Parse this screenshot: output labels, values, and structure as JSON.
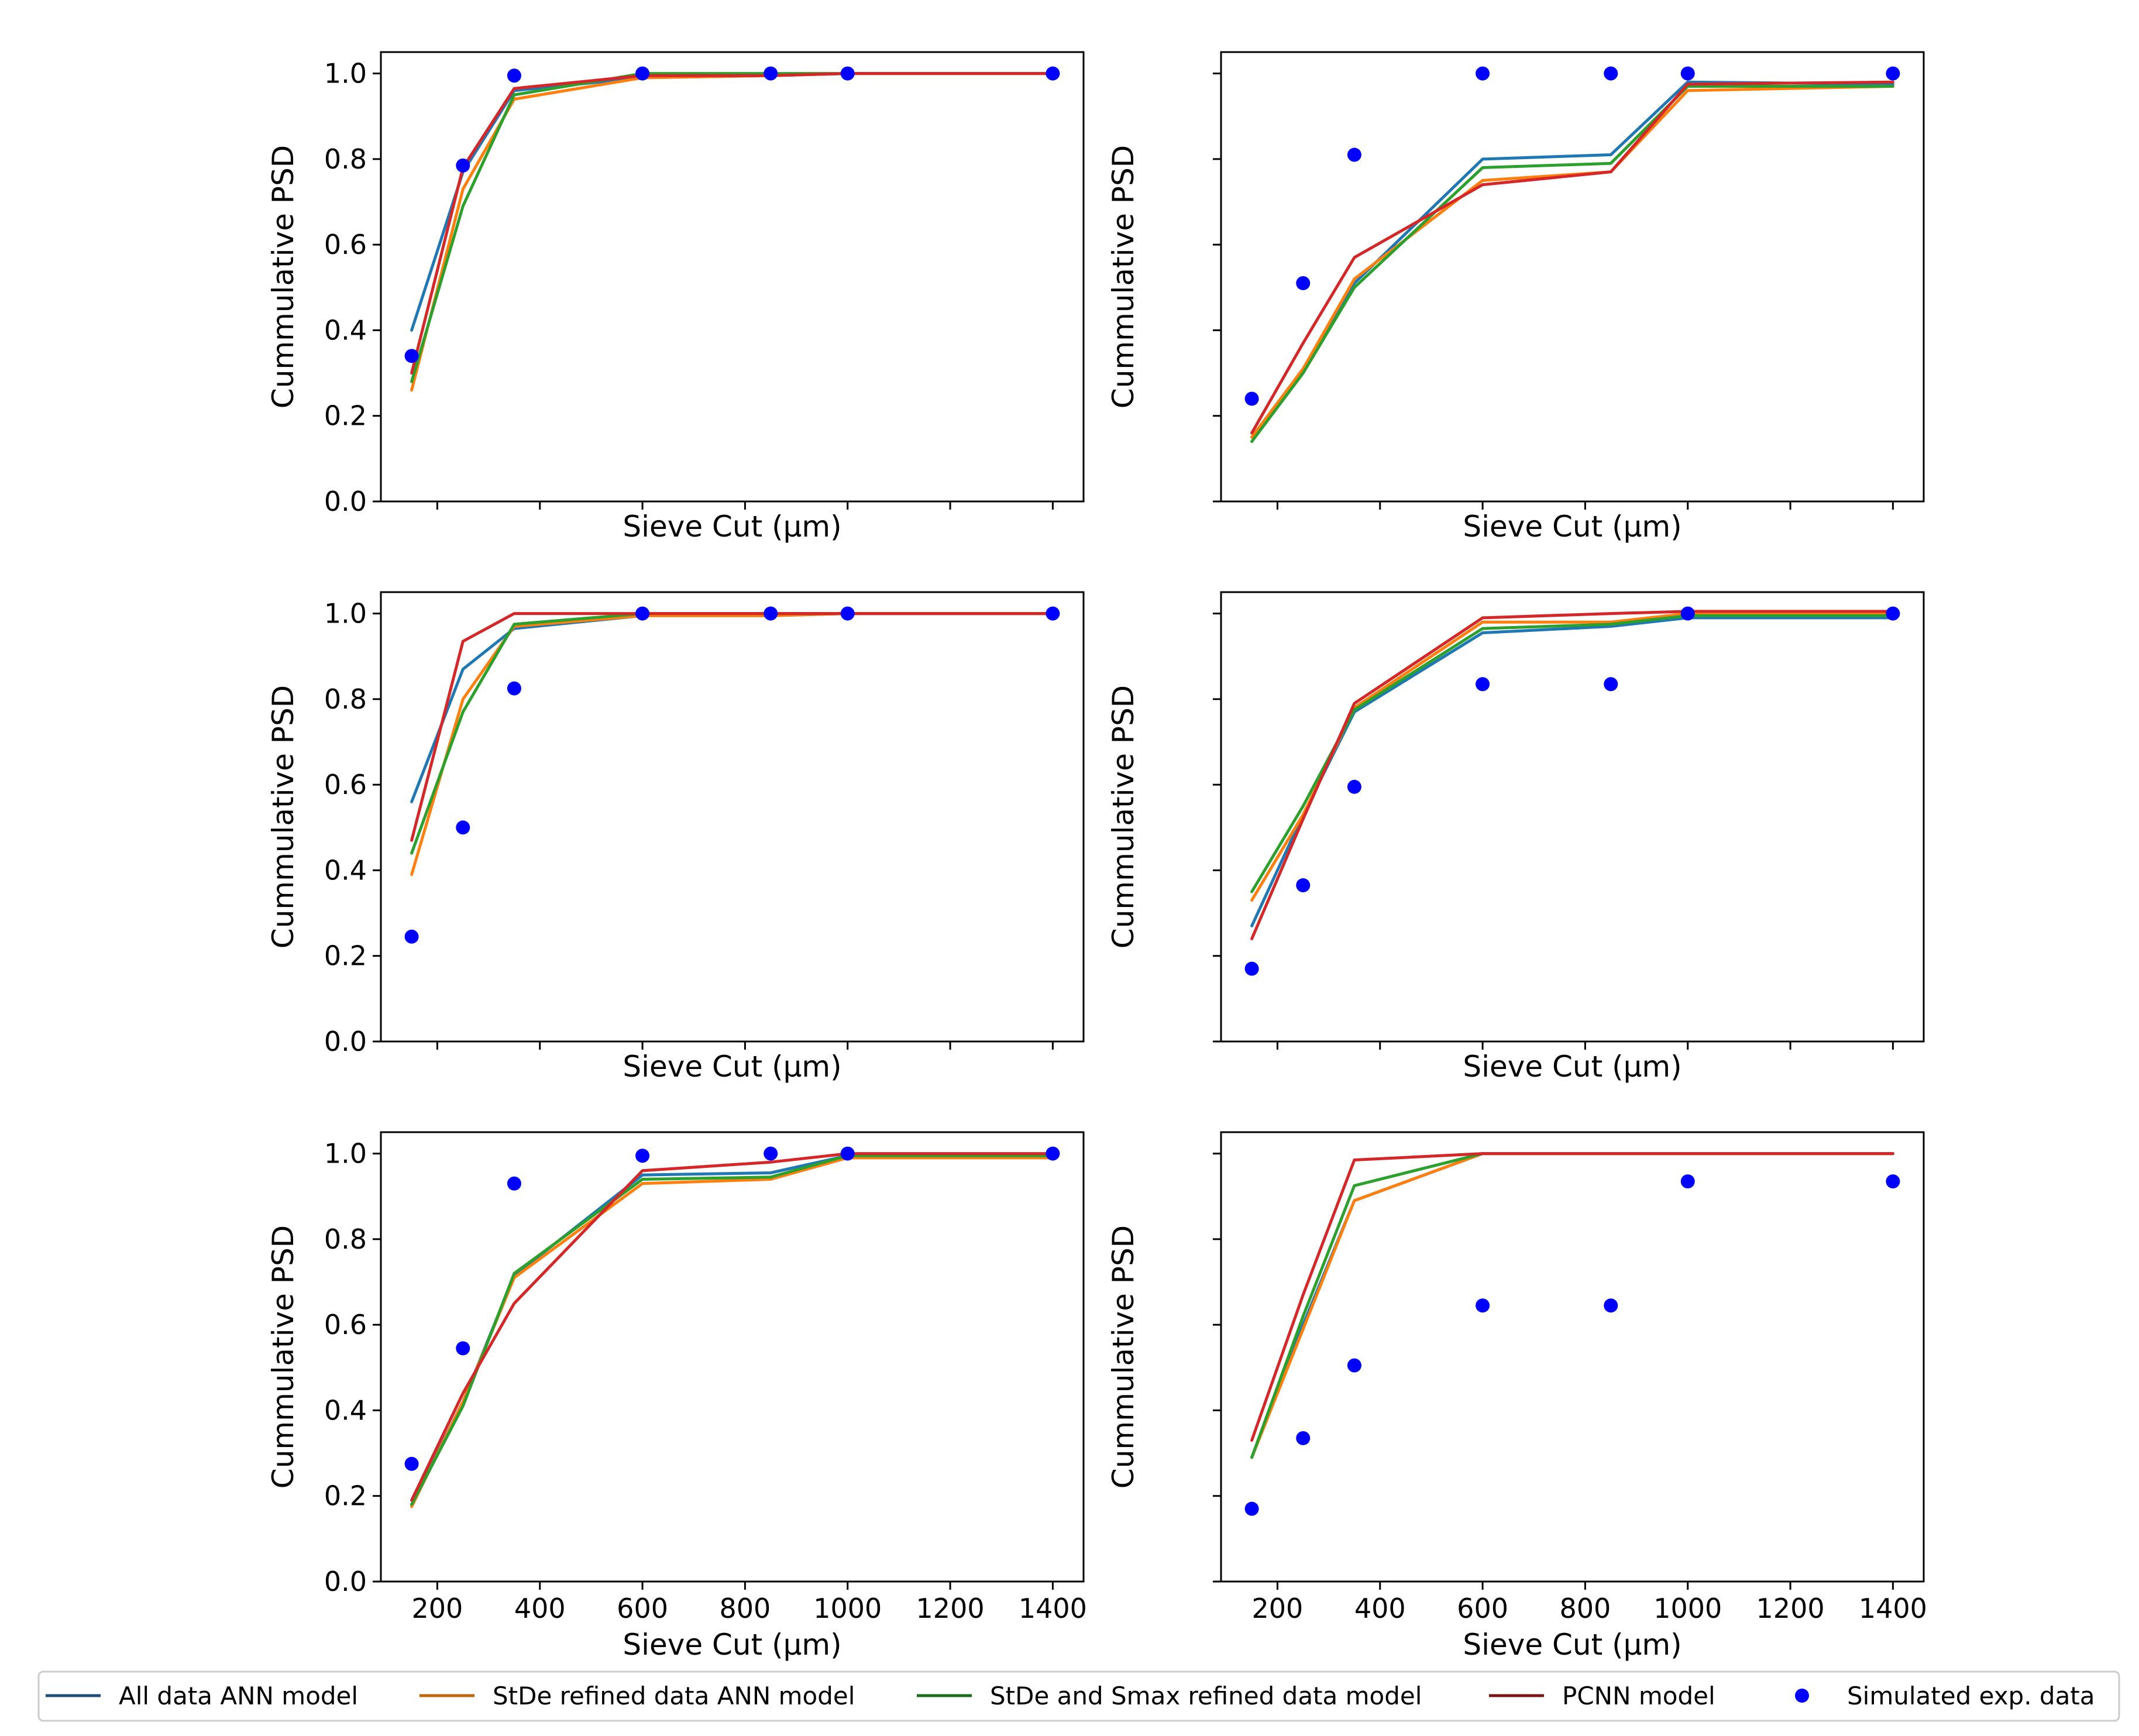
{
  "legend": [
    {
      "key": "all",
      "label": "All data ANN model",
      "swatch": "#1f4e79",
      "line": "#1f77b4"
    },
    {
      "key": "stde",
      "label": "StDe refined data ANN model",
      "swatch": "#c0650a",
      "line": "#ff7f0e"
    },
    {
      "key": "smax",
      "label": "StDe and Smax refined data model",
      "swatch": "#1a6b1a",
      "line": "#2ca02c"
    },
    {
      "key": "pcnn",
      "label": "PCNN model",
      "swatch": "#7a1416",
      "line": "#d62728"
    },
    {
      "key": "exp",
      "label": "Simulated exp. data",
      "swatch": "#0000ff",
      "line": "#0000ff"
    }
  ],
  "chart_data": [
    {
      "type": "line",
      "ylabel": "Cummulative PSD",
      "xlabel": "Sieve Cut (μm)",
      "xlim": [
        90,
        1460
      ],
      "ylim": [
        0,
        1.05
      ],
      "x": [
        150,
        250,
        350,
        600,
        850,
        1000,
        1400
      ],
      "xticks": [
        200,
        400,
        600,
        800,
        1000,
        1200,
        1400
      ],
      "yticks": [
        0.0,
        0.2,
        0.4,
        0.6,
        0.8,
        1.0
      ],
      "show_xtick_labels": false,
      "show_ytick_labels": true,
      "series": [
        {
          "key": "all",
          "name": "All data ANN model",
          "values": [
            0.4,
            0.77,
            0.96,
            0.99,
            0.995,
            1.0,
            1.0
          ]
        },
        {
          "key": "stde",
          "name": "StDe refined data ANN model",
          "values": [
            0.26,
            0.73,
            0.94,
            0.99,
            0.995,
            1.0,
            1.0
          ]
        },
        {
          "key": "smax",
          "name": "StDe and Smax refined data model",
          "values": [
            0.28,
            0.69,
            0.95,
            1.0,
            1.0,
            1.0,
            1.0
          ]
        },
        {
          "key": "pcnn",
          "name": "PCNN model",
          "values": [
            0.3,
            0.78,
            0.965,
            0.995,
            0.995,
            1.0,
            1.0
          ]
        }
      ],
      "scatter": {
        "key": "exp",
        "name": "Simulated exp. data",
        "values": [
          0.34,
          0.785,
          0.995,
          1.0,
          1.0,
          1.0,
          1.0
        ]
      }
    },
    {
      "type": "line",
      "ylabel": "Cummulative PSD",
      "xlabel": "Sieve Cut (μm)",
      "xlim": [
        90,
        1460
      ],
      "ylim": [
        0,
        1.05
      ],
      "x": [
        150,
        250,
        350,
        600,
        850,
        1000,
        1400
      ],
      "xticks": [
        200,
        400,
        600,
        800,
        1000,
        1200,
        1400
      ],
      "yticks": [
        0.0,
        0.2,
        0.4,
        0.6,
        0.8,
        1.0
      ],
      "show_xtick_labels": false,
      "show_ytick_labels": false,
      "series": [
        {
          "key": "all",
          "name": "All data ANN model",
          "values": [
            0.15,
            0.31,
            0.51,
            0.8,
            0.81,
            0.98,
            0.975
          ]
        },
        {
          "key": "stde",
          "name": "StDe refined data ANN model",
          "values": [
            0.15,
            0.31,
            0.52,
            0.75,
            0.77,
            0.96,
            0.97
          ]
        },
        {
          "key": "smax",
          "name": "StDe and Smax refined data model",
          "values": [
            0.14,
            0.3,
            0.5,
            0.78,
            0.79,
            0.97,
            0.97
          ]
        },
        {
          "key": "pcnn",
          "name": "PCNN model",
          "values": [
            0.16,
            0.37,
            0.57,
            0.74,
            0.77,
            0.975,
            0.98
          ]
        }
      ],
      "scatter": {
        "key": "exp",
        "name": "Simulated exp. data",
        "values": [
          0.24,
          0.51,
          0.81,
          1.0,
          1.0,
          1.0,
          1.0
        ]
      }
    },
    {
      "type": "line",
      "ylabel": "Cummulative PSD",
      "xlabel": "Sieve Cut (μm)",
      "xlim": [
        90,
        1460
      ],
      "ylim": [
        0,
        1.05
      ],
      "x": [
        150,
        250,
        350,
        600,
        850,
        1000,
        1400
      ],
      "xticks": [
        200,
        400,
        600,
        800,
        1000,
        1200,
        1400
      ],
      "yticks": [
        0.0,
        0.2,
        0.4,
        0.6,
        0.8,
        1.0
      ],
      "show_xtick_labels": false,
      "show_ytick_labels": true,
      "series": [
        {
          "key": "all",
          "name": "All data ANN model",
          "values": [
            0.56,
            0.87,
            0.965,
            0.995,
            0.995,
            1.0,
            1.0
          ]
        },
        {
          "key": "stde",
          "name": "StDe refined data ANN model",
          "values": [
            0.39,
            0.8,
            0.97,
            0.995,
            0.995,
            1.0,
            1.0
          ]
        },
        {
          "key": "smax",
          "name": "StDe and Smax refined data model",
          "values": [
            0.44,
            0.77,
            0.975,
            1.0,
            1.0,
            1.0,
            1.0
          ]
        },
        {
          "key": "pcnn",
          "name": "PCNN model",
          "values": [
            0.47,
            0.935,
            1.0,
            1.0,
            1.0,
            1.0,
            1.0
          ]
        }
      ],
      "scatter": {
        "key": "exp",
        "name": "Simulated exp. data",
        "values": [
          0.245,
          0.5,
          0.825,
          1.0,
          1.0,
          1.0,
          1.0
        ]
      }
    },
    {
      "type": "line",
      "ylabel": "Cummulative PSD",
      "xlabel": "Sieve Cut (μm)",
      "xlim": [
        90,
        1460
      ],
      "ylim": [
        0,
        1.05
      ],
      "x": [
        150,
        250,
        350,
        600,
        850,
        1000,
        1400
      ],
      "xticks": [
        200,
        400,
        600,
        800,
        1000,
        1200,
        1400
      ],
      "yticks": [
        0.0,
        0.2,
        0.4,
        0.6,
        0.8,
        1.0
      ],
      "show_xtick_labels": false,
      "show_ytick_labels": false,
      "series": [
        {
          "key": "all",
          "name": "All data ANN model",
          "values": [
            0.27,
            0.53,
            0.77,
            0.955,
            0.97,
            0.99,
            0.99
          ]
        },
        {
          "key": "stde",
          "name": "StDe refined data ANN model",
          "values": [
            0.33,
            0.53,
            0.78,
            0.98,
            0.98,
            1.0,
            1.0
          ]
        },
        {
          "key": "smax",
          "name": "StDe and Smax refined data model",
          "values": [
            0.35,
            0.55,
            0.775,
            0.965,
            0.975,
            0.995,
            0.995
          ]
        },
        {
          "key": "pcnn",
          "name": "PCNN model",
          "values": [
            0.24,
            0.52,
            0.79,
            0.99,
            1.0,
            1.005,
            1.005
          ]
        }
      ],
      "scatter": {
        "key": "exp",
        "name": "Simulated exp. data",
        "values": [
          0.17,
          0.365,
          0.595,
          0.835,
          0.835,
          1.0,
          1.0
        ]
      }
    },
    {
      "type": "line",
      "ylabel": "Cummulative PSD",
      "xlabel": "Sieve Cut (μm)",
      "xlim": [
        90,
        1460
      ],
      "ylim": [
        0,
        1.05
      ],
      "x": [
        150,
        250,
        350,
        600,
        850,
        1000,
        1400
      ],
      "xticks": [
        200,
        400,
        600,
        800,
        1000,
        1200,
        1400
      ],
      "yticks": [
        0.0,
        0.2,
        0.4,
        0.6,
        0.8,
        1.0
      ],
      "show_xtick_labels": true,
      "show_ytick_labels": true,
      "series": [
        {
          "key": "all",
          "name": "All data ANN model",
          "values": [
            0.18,
            0.42,
            0.715,
            0.95,
            0.955,
            0.995,
            0.995
          ]
        },
        {
          "key": "stde",
          "name": "StDe refined data ANN model",
          "values": [
            0.175,
            0.42,
            0.71,
            0.93,
            0.94,
            0.99,
            0.99
          ]
        },
        {
          "key": "smax",
          "name": "StDe and Smax refined data model",
          "values": [
            0.18,
            0.41,
            0.72,
            0.94,
            0.945,
            0.995,
            0.995
          ]
        },
        {
          "key": "pcnn",
          "name": "PCNN model",
          "values": [
            0.19,
            0.44,
            0.65,
            0.96,
            0.98,
            1.0,
            1.0
          ]
        }
      ],
      "scatter": {
        "key": "exp",
        "name": "Simulated exp. data",
        "values": [
          0.275,
          0.545,
          0.93,
          0.995,
          1.0,
          1.0,
          1.0
        ]
      }
    },
    {
      "type": "line",
      "ylabel": "Cummulative PSD",
      "xlabel": "Sieve Cut (μm)",
      "xlim": [
        90,
        1460
      ],
      "ylim": [
        0,
        1.05
      ],
      "x": [
        150,
        250,
        350,
        600,
        850,
        1000,
        1400
      ],
      "xticks": [
        200,
        400,
        600,
        800,
        1000,
        1200,
        1400
      ],
      "yticks": [
        0.0,
        0.2,
        0.4,
        0.6,
        0.8,
        1.0
      ],
      "show_xtick_labels": true,
      "show_ytick_labels": false,
      "series": [
        {
          "key": "all",
          "name": "All data ANN model",
          "values": [
            0.29,
            0.6,
            0.89,
            1.0,
            1.0,
            1.0,
            1.0
          ]
        },
        {
          "key": "stde",
          "name": "StDe refined data ANN model",
          "values": [
            0.29,
            0.59,
            0.89,
            1.0,
            1.0,
            1.0,
            1.0
          ]
        },
        {
          "key": "smax",
          "name": "StDe and Smax refined data model",
          "values": [
            0.29,
            0.62,
            0.925,
            1.0,
            1.0,
            1.0,
            1.0
          ]
        },
        {
          "key": "pcnn",
          "name": "PCNN model",
          "values": [
            0.33,
            0.67,
            0.985,
            1.0,
            1.0,
            1.0,
            1.0
          ]
        }
      ],
      "scatter": {
        "key": "exp",
        "name": "Simulated exp. data",
        "values": [
          0.17,
          0.335,
          0.505,
          0.645,
          0.645,
          0.935,
          0.935
        ]
      }
    }
  ]
}
